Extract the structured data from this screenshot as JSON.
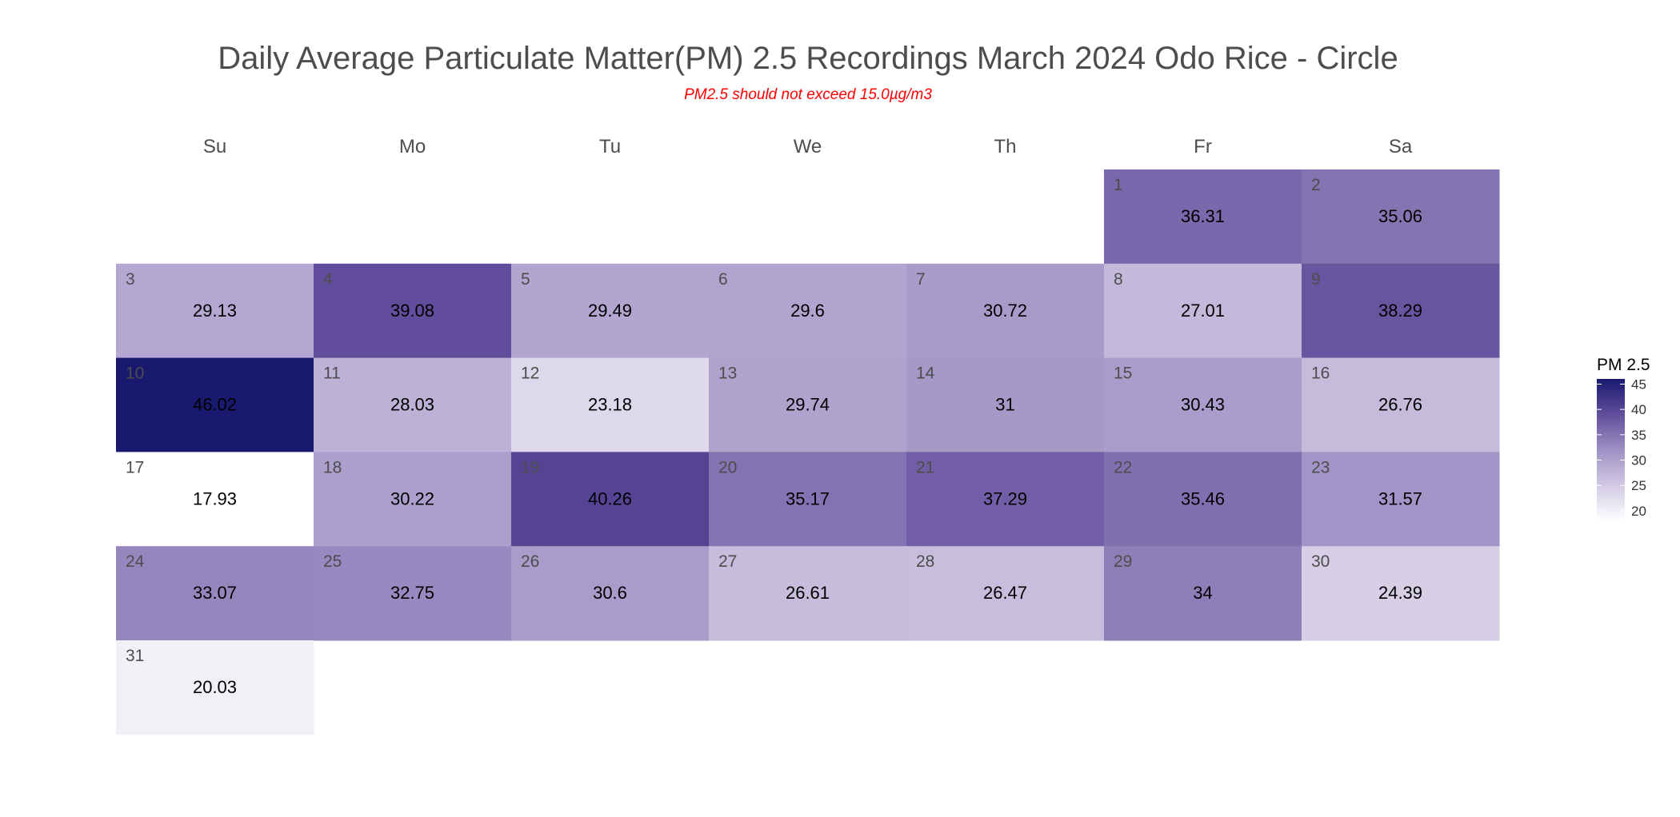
{
  "chart_data": {
    "type": "heatmap",
    "title": "Daily Average Particulate Matter(PM) 2.5 Recordings March 2024 Odo Rice - Circle",
    "subtitle": "PM2.5 should not exceed 15.0µg/m3",
    "weekdays": [
      "Su",
      "Mo",
      "Tu",
      "We",
      "Th",
      "Fr",
      "Sa"
    ],
    "first_weekday_index": 5,
    "days": [
      1,
      2,
      3,
      4,
      5,
      6,
      7,
      8,
      9,
      10,
      11,
      12,
      13,
      14,
      15,
      16,
      17,
      18,
      19,
      20,
      21,
      22,
      23,
      24,
      25,
      26,
      27,
      28,
      29,
      30,
      31
    ],
    "values": [
      36.31,
      35.06,
      29.13,
      39.08,
      29.49,
      29.6,
      30.72,
      27.01,
      38.29,
      46.02,
      28.03,
      23.18,
      29.74,
      31,
      30.43,
      26.76,
      17.93,
      30.22,
      40.26,
      35.17,
      37.29,
      35.46,
      31.57,
      33.07,
      32.75,
      30.6,
      26.61,
      26.47,
      34,
      24.39,
      20.03
    ],
    "legend": {
      "title": "PM 2.5",
      "ticks": [
        45,
        40,
        35,
        30,
        25,
        20
      ],
      "range": [
        17.93,
        46.02
      ],
      "placement": "right"
    },
    "colors": {
      "low": "#ffffff",
      "high": "#191970"
    }
  }
}
